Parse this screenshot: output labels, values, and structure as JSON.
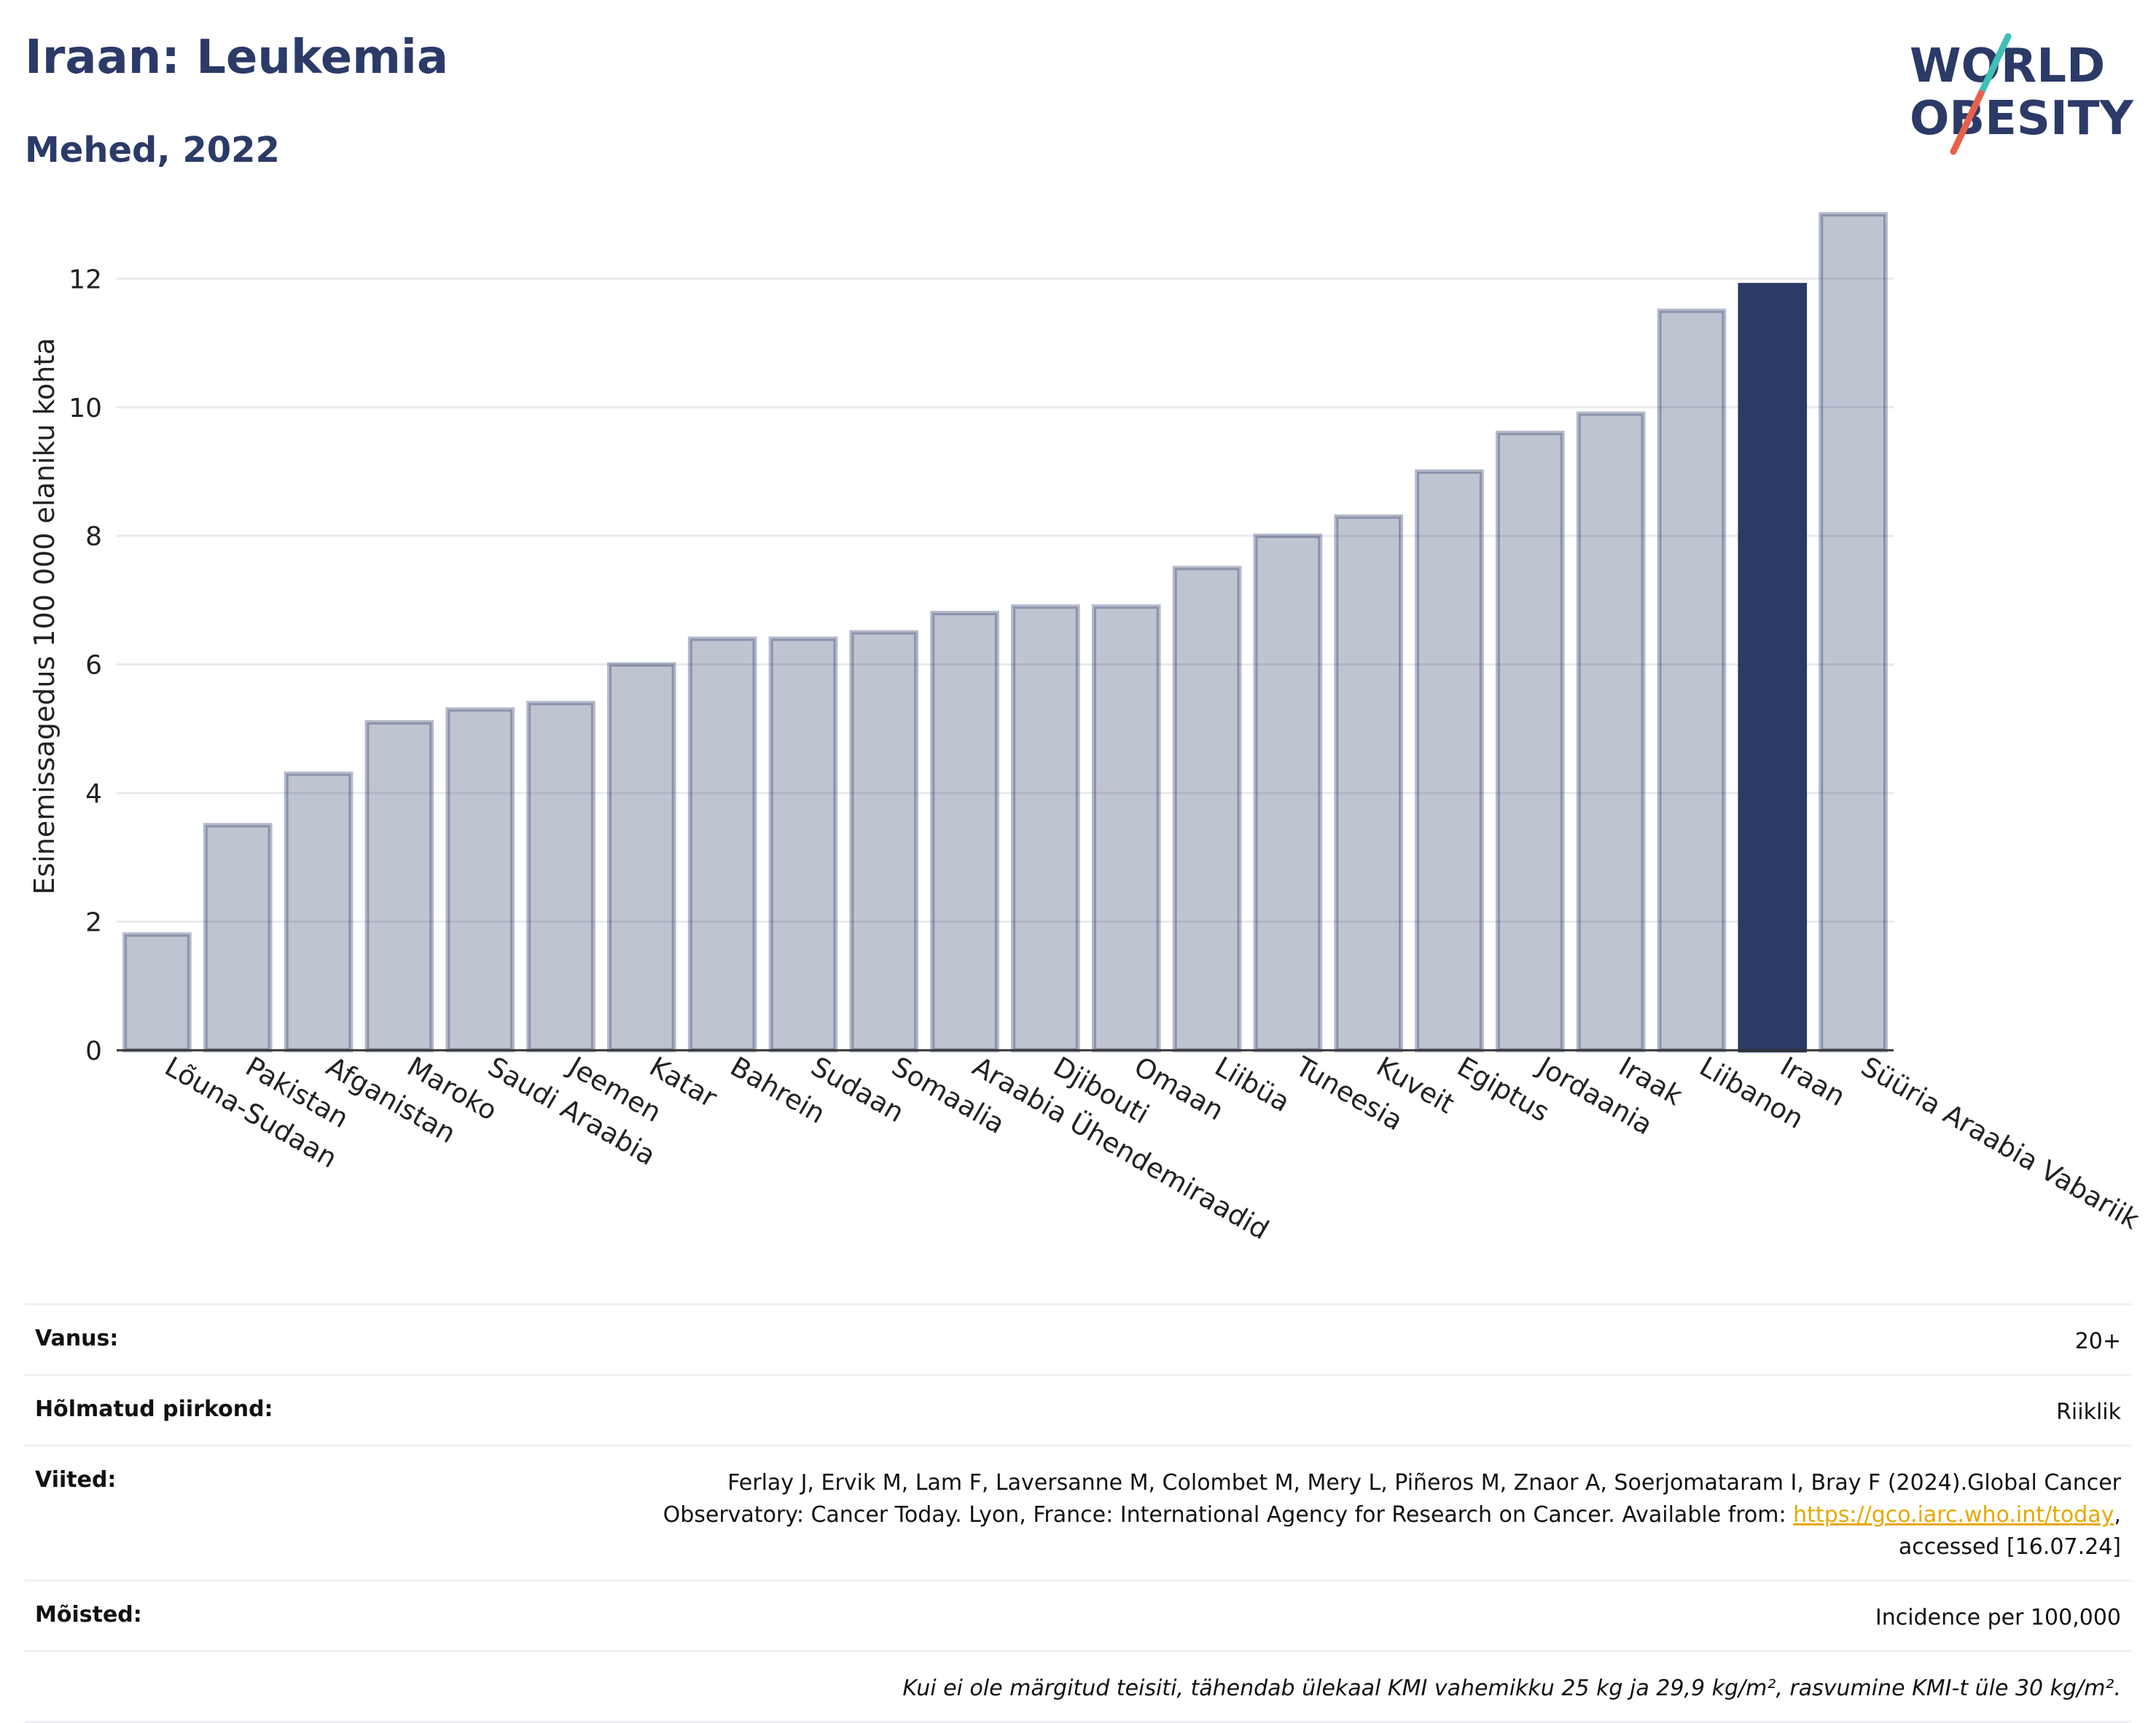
{
  "header": {
    "title": "Iraan: Leukemia",
    "subtitle": "Mehed, 2022"
  },
  "logo": {
    "line1": "WORLD",
    "line2": "OBESITY",
    "colors": {
      "text": "#2b3a67",
      "slash_teal": "#3fbfb5",
      "slash_red": "#e8604c"
    }
  },
  "chart_data": {
    "type": "bar",
    "ylabel": "Esinemissagedus 100 000 elaniku kohta",
    "ylim": [
      0,
      13.5
    ],
    "yticks": [
      0,
      2,
      4,
      6,
      8,
      10,
      12
    ],
    "grid": true,
    "highlight": "Iraan",
    "colors": {
      "bar": "#2b3a67",
      "highlight": "#2b3a67",
      "grid": "#e8eaf0"
    },
    "categories": [
      "Lõuna-Sudaan",
      "Pakistan",
      "Afganistan",
      "Maroko",
      "Saudi Araabia",
      "Jeemen",
      "Katar",
      "Bahrein",
      "Sudaan",
      "Somaalia",
      "Araabia Ühendemiraadid",
      "Djibouti",
      "Omaan",
      "Liibüa",
      "Tuneesia",
      "Kuveit",
      "Egiptus",
      "Jordaania",
      "Iraak",
      "Liibanon",
      "Iraan",
      "Süüria Araabia Vabariik"
    ],
    "values": [
      1.8,
      3.5,
      4.3,
      5.1,
      5.3,
      5.4,
      6.0,
      6.4,
      6.4,
      6.5,
      6.8,
      6.9,
      6.9,
      7.5,
      8.0,
      8.3,
      9.0,
      9.6,
      9.9,
      11.5,
      11.9,
      13.0
    ]
  },
  "info": {
    "age_label": "Vanus:",
    "age_value": "20+",
    "region_label": "Hõlmatud piirkond:",
    "region_value": "Riiklik",
    "refs_label": "Viited:",
    "refs_text": "Ferlay J, Ervik M, Lam F, Laversanne M, Colombet M, Mery L, Piñeros M, Znaor A, Soerjomataram I, Bray F (2024).Global Cancer Observatory: Cancer Today. Lyon, France: International Agency for Research on Cancer. Available from: ",
    "refs_link": "https://gco.iarc.who.int/today",
    "refs_tail": ", accessed [16.07.24]",
    "def_label": "Mõisted:",
    "def_value": "Incidence per 100,000",
    "note": "Kui ei ole märgitud teisiti, tähendab ülekaal KMI vahemikku 25 kg ja 29,9 kg/m², rasvumine KMI-t üle 30 kg/m²."
  }
}
